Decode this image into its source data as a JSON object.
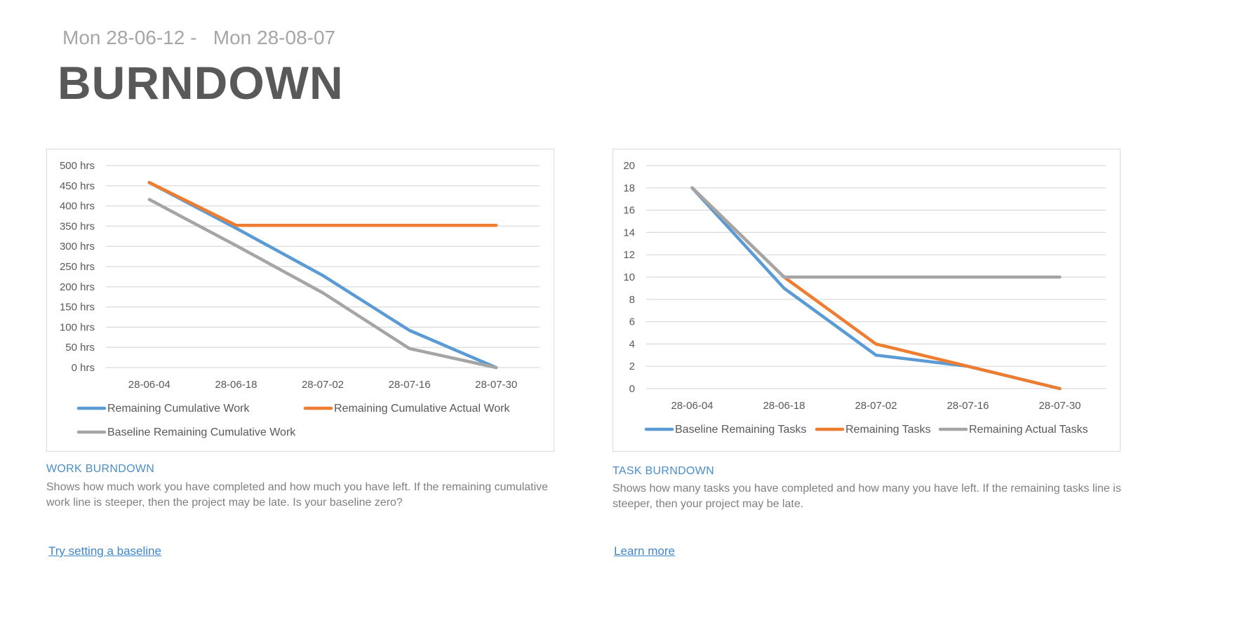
{
  "header": {
    "date_start": "Mon 28-06-12 -",
    "date_end": "Mon 28-08-07",
    "title": "BURNDOWN"
  },
  "work_section": {
    "heading": "WORK BURNDOWN",
    "description": "Shows how much work you have completed and how much you have left. If the remaining cumulative work line is steeper, then the project may be late. Is your baseline zero?",
    "link": "Try setting a baseline"
  },
  "task_section": {
    "heading": "TASK BURNDOWN",
    "description": "Shows how many tasks you have completed and how many you have left. If the remaining tasks line is steeper, then your project may be late.",
    "link": "Learn more"
  },
  "colors": {
    "blue": "#5b9bd5",
    "orange": "#ed7d31",
    "gray": "#a5a5a5",
    "heading": "#4a8ec9",
    "title": "#595959"
  },
  "chart_data": [
    {
      "type": "line",
      "title": "",
      "xlabel": "",
      "ylabel": "",
      "categories": [
        "28-06-04",
        "28-06-18",
        "28-07-02",
        "28-07-16",
        "28-07-30"
      ],
      "ylim": [
        0,
        500
      ],
      "yticks": [
        0,
        50,
        100,
        150,
        200,
        250,
        300,
        350,
        400,
        450,
        500
      ],
      "ytick_labels": [
        "0 hrs",
        "50 hrs",
        "100 hrs",
        "150 hrs",
        "200 hrs",
        "250 hrs",
        "300 hrs",
        "350 hrs",
        "400 hrs",
        "450 hrs",
        "500 hrs"
      ],
      "grid": true,
      "legend": "bottom",
      "series": [
        {
          "name": "Remaining Cumulative Work",
          "color": "#5b9bd5",
          "values": [
            458,
            345,
            228,
            92,
            0
          ]
        },
        {
          "name": "Remaining Cumulative Actual Work",
          "color": "#ed7d31",
          "values": [
            458,
            352,
            352,
            352,
            352
          ]
        },
        {
          "name": "Baseline Remaining Cumulative Work",
          "color": "#a5a5a5",
          "values": [
            416,
            302,
            185,
            47,
            0
          ]
        }
      ]
    },
    {
      "type": "line",
      "title": "",
      "xlabel": "",
      "ylabel": "",
      "categories": [
        "28-06-04",
        "28-06-18",
        "28-07-02",
        "28-07-16",
        "28-07-30"
      ],
      "ylim": [
        0,
        20
      ],
      "yticks": [
        0,
        2,
        4,
        6,
        8,
        10,
        12,
        14,
        16,
        18,
        20
      ],
      "ytick_labels": [
        "0",
        "2",
        "4",
        "6",
        "8",
        "10",
        "12",
        "14",
        "16",
        "18",
        "20"
      ],
      "grid": true,
      "legend": "bottom",
      "series": [
        {
          "name": "Baseline Remaining Tasks",
          "color": "#5b9bd5",
          "values": [
            18,
            9,
            3,
            2,
            0
          ]
        },
        {
          "name": "Remaining Tasks",
          "color": "#ed7d31",
          "values": [
            18,
            10,
            4,
            2,
            0
          ]
        },
        {
          "name": "Remaining Actual Tasks",
          "color": "#a5a5a5",
          "values": [
            18,
            10,
            10,
            10,
            10
          ]
        }
      ]
    }
  ]
}
